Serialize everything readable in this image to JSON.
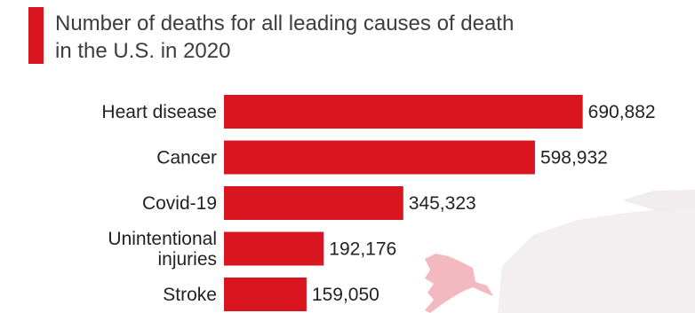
{
  "accent_color": "#d9151f",
  "chart_data": {
    "type": "bar",
    "orientation": "horizontal",
    "title": "Number of deaths for all leading causes of death in the U.S. in 2020",
    "title_lines": [
      "Number of deaths for all leading causes of death",
      "in the U.S. in 2020"
    ],
    "categories": [
      "Heart disease",
      "Cancer",
      "Covid-19",
      "Unintentional injuries",
      "Stroke"
    ],
    "category_lines": [
      [
        "Heart disease"
      ],
      [
        "Cancer"
      ],
      [
        "Covid-19"
      ],
      [
        "Unintentional",
        "injuries"
      ],
      [
        "Stroke"
      ]
    ],
    "values": [
      690882,
      598932,
      345323,
      192176,
      159050
    ],
    "value_labels": [
      "690,882",
      "598,932",
      "345,323",
      "192,176",
      "159,050"
    ],
    "xlim": [
      0,
      700000
    ],
    "grid": false,
    "legend": "none",
    "bar_color": "#d9151f",
    "background_decoration": "faint pink-gray map of Alaska and surrounding land at bottom right"
  }
}
